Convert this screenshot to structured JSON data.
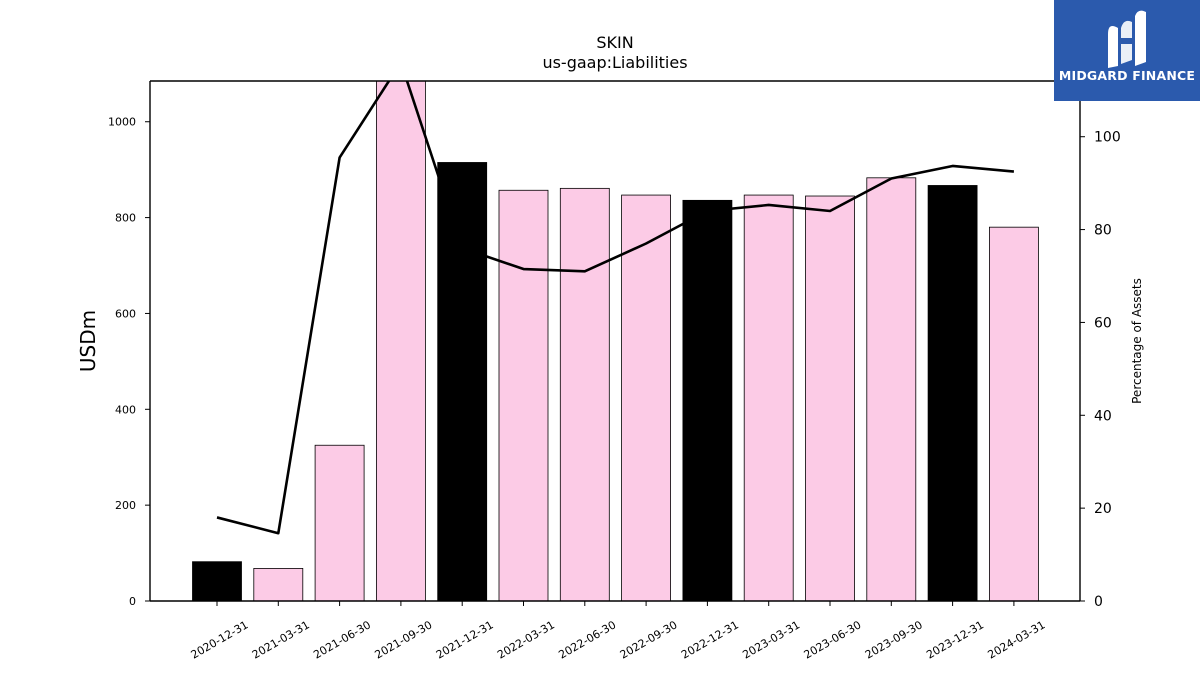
{
  "brand": {
    "name": "MIDGARD FINANCE",
    "logo_icon": "midgard-m-logo-icon",
    "background": "#2b5aad"
  },
  "chart_data": {
    "type": "bar",
    "title": "SKIN",
    "subtitle": "us-gaap:Liabilities",
    "ylabel": "USDm",
    "y2label": "Percentage of Assets",
    "ylim": [
      0,
      1085
    ],
    "y2lim": [
      0,
      112
    ],
    "yticks": [
      0,
      200,
      400,
      600,
      800,
      1000
    ],
    "y2ticks": [
      0,
      20,
      40,
      60,
      80,
      100
    ],
    "categories": [
      "2020-12-31",
      "2021-03-31",
      "2021-06-30",
      "2021-09-30",
      "2021-12-31",
      "2022-03-31",
      "2022-06-30",
      "2022-09-30",
      "2022-12-31",
      "2023-03-31",
      "2023-06-30",
      "2023-09-30",
      "2023-12-31",
      "2024-03-31"
    ],
    "series": [
      {
        "type": "bar",
        "axis": "left",
        "values": [
          82,
          68,
          325,
          1100,
          915,
          857,
          861,
          847,
          836,
          847,
          845,
          883,
          867,
          780
        ],
        "colors": [
          "#000000",
          "#fccbe6",
          "#fccbe6",
          "#fccbe6",
          "#000000",
          "#fccbe6",
          "#fccbe6",
          "#fccbe6",
          "#000000",
          "#fccbe6",
          "#fccbe6",
          "#fccbe6",
          "#000000",
          "#fccbe6"
        ]
      },
      {
        "type": "line",
        "axis": "right",
        "color": "#000000",
        "values": [
          18,
          14.6,
          95.5,
          116,
          76,
          71.5,
          71,
          77,
          84,
          85.3,
          84,
          91,
          93.7,
          92.5
        ]
      }
    ],
    "grid": false
  }
}
